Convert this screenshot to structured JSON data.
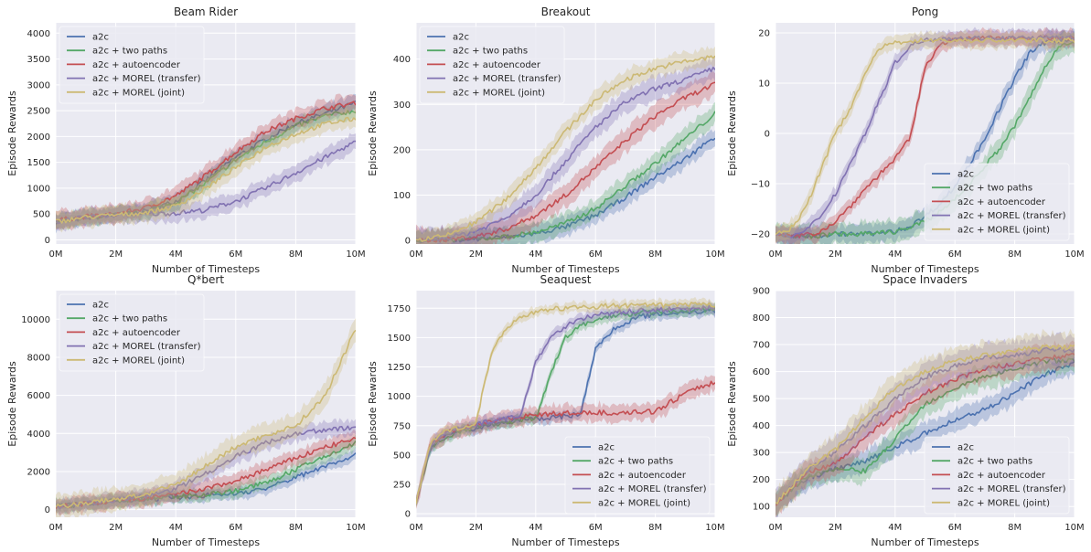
{
  "colors": {
    "a2c": "#4c72b0",
    "a2c + two paths": "#55a868",
    "a2c + autoencoder": "#c44e52",
    "a2c + MOREL (transfer)": "#8172b2",
    "a2c + MOREL (joint)": "#ccb974",
    "axes_bg": "#eaeaf2",
    "grid": "#ffffff"
  },
  "chart_data": [
    {
      "type": "line",
      "title": "Beam Rider",
      "xlabel": "Number of Timesteps",
      "ylabel": "Episode Rewards",
      "xlim": [
        0,
        10
      ],
      "ylim": [
        -80,
        4200
      ],
      "xticks": [
        0,
        2,
        4,
        6,
        8,
        10
      ],
      "xtick_labels": [
        "0M",
        "2M",
        "4M",
        "6M",
        "8M",
        "10M"
      ],
      "yticks": [
        0,
        500,
        1000,
        1500,
        2000,
        2500,
        3000,
        3500,
        4000
      ],
      "ytick_labels": [
        "0",
        "500",
        "1000",
        "1500",
        "2000",
        "2500",
        "3000",
        "3500",
        "4000"
      ],
      "legend_loc": "upper left",
      "grid": true,
      "x": [
        0,
        1,
        2,
        3,
        4,
        5,
        6,
        7,
        8,
        9,
        10
      ],
      "series": [
        {
          "name": "a2c",
          "values": [
            350,
            420,
            480,
            560,
            750,
            1150,
            1600,
            1950,
            2250,
            2450,
            2650
          ],
          "band": 150
        },
        {
          "name": "a2c + two paths",
          "values": [
            350,
            430,
            480,
            550,
            720,
            1100,
            1550,
            1900,
            2200,
            2400,
            2500
          ],
          "band": 150
        },
        {
          "name": "a2c + autoencoder",
          "values": [
            380,
            450,
            500,
            620,
            850,
            1250,
            1700,
            2100,
            2350,
            2550,
            2650
          ],
          "band": 170
        },
        {
          "name": "a2c + MOREL (transfer)",
          "values": [
            360,
            440,
            480,
            500,
            520,
            580,
            750,
            1000,
            1300,
            1600,
            1900
          ],
          "band": 160
        },
        {
          "name": "a2c + MOREL (joint)",
          "values": [
            350,
            440,
            480,
            530,
            650,
            1000,
            1400,
            1800,
            2050,
            2250,
            2350
          ],
          "band": 170
        }
      ]
    },
    {
      "type": "line",
      "title": "Breakout",
      "xlabel": "Number of Timesteps",
      "ylabel": "Episode Rewards",
      "xlim": [
        0,
        10
      ],
      "ylim": [
        -8,
        480
      ],
      "xticks": [
        0,
        2,
        4,
        6,
        8,
        10
      ],
      "xtick_labels": [
        "0M",
        "2M",
        "4M",
        "6M",
        "8M",
        "10M"
      ],
      "yticks": [
        0,
        100,
        200,
        300,
        400
      ],
      "ytick_labels": [
        "0",
        "100",
        "200",
        "300",
        "400"
      ],
      "legend_loc": "upper left",
      "grid": true,
      "x": [
        0,
        1,
        2,
        3,
        4,
        5,
        6,
        7,
        8,
        9,
        10
      ],
      "series": [
        {
          "name": "a2c",
          "values": [
            0,
            1,
            3,
            7,
            15,
            30,
            55,
            95,
            140,
            180,
            230
          ],
          "band": 20
        },
        {
          "name": "a2c + two paths",
          "values": [
            0,
            1,
            3,
            8,
            18,
            38,
            70,
            120,
            170,
            225,
            280
          ],
          "band": 22
        },
        {
          "name": "a2c + autoencoder",
          "values": [
            0,
            2,
            8,
            25,
            55,
            100,
            160,
            220,
            275,
            315,
            345
          ],
          "band": 25
        },
        {
          "name": "a2c + MOREL (transfer)",
          "values": [
            0,
            5,
            20,
            50,
            100,
            175,
            250,
            305,
            335,
            355,
            380
          ],
          "band": 25
        },
        {
          "name": "a2c + MOREL (joint)",
          "values": [
            0,
            10,
            40,
            90,
            160,
            240,
            310,
            355,
            380,
            395,
            405
          ],
          "band": 20
        }
      ]
    },
    {
      "type": "line",
      "title": "Pong",
      "xlabel": "Number of Timesteps",
      "ylabel": "Episode Rewards",
      "xlim": [
        0,
        10
      ],
      "ylim": [
        -22,
        22
      ],
      "xticks": [
        0,
        2,
        4,
        6,
        8,
        10
      ],
      "xtick_labels": [
        "0M",
        "2M",
        "4M",
        "6M",
        "8M",
        "10M"
      ],
      "yticks": [
        -20,
        -10,
        0,
        10,
        20
      ],
      "ytick_labels": [
        "−20",
        "−10",
        "0",
        "10",
        "20"
      ],
      "legend_loc": "lower right",
      "grid": true,
      "x": [
        0,
        0.5,
        1,
        1.5,
        2,
        2.5,
        3,
        3.5,
        4,
        4.5,
        5,
        5.5,
        6,
        6.5,
        7,
        7.5,
        8,
        8.5,
        9,
        9.5,
        10
      ],
      "series": [
        {
          "name": "a2c",
          "values": [
            -20,
            -20.5,
            -20.5,
            -20.3,
            -20,
            -20,
            -20,
            -19.8,
            -19.5,
            -18.5,
            -16.5,
            -14,
            -10.5,
            -6,
            -1,
            5,
            11,
            16,
            18,
            18.5,
            19
          ],
          "band": 1.8
        },
        {
          "name": "a2c + two paths",
          "values": [
            -20,
            -20.5,
            -20.5,
            -20.3,
            -20,
            -20,
            -20,
            -19.8,
            -19.5,
            -18.8,
            -17.5,
            -15.5,
            -13,
            -10,
            -6.5,
            -3,
            1.5,
            7,
            13,
            17.5,
            18.5
          ],
          "band": 2.2
        },
        {
          "name": "a2c + autoencoder",
          "values": [
            -20,
            -20.5,
            -20.3,
            -19.5,
            -17.5,
            -14.5,
            -11,
            -8,
            -5,
            -1,
            13,
            18,
            18.5,
            18.8,
            19,
            19,
            19,
            19,
            19,
            19,
            19
          ],
          "band": 1.5
        },
        {
          "name": "a2c + MOREL (transfer)",
          "values": [
            -20,
            -20.5,
            -19.5,
            -16.5,
            -12,
            -6,
            0,
            7,
            14,
            17.5,
            18.5,
            19,
            19,
            19,
            19,
            19,
            19,
            19,
            19,
            19,
            19
          ],
          "band": 1.5
        },
        {
          "name": "a2c + MOREL (joint)",
          "values": [
            -20,
            -19,
            -15,
            -7.5,
            0,
            5,
            12,
            17,
            18,
            18.5,
            18.5,
            18.5,
            18.5,
            18.5,
            18.5,
            18.5,
            18.5,
            18.5,
            18.5,
            18.5,
            18.5
          ],
          "band": 1.5
        }
      ]
    },
    {
      "type": "line",
      "title": "Q*bert",
      "xlabel": "Number of Timesteps",
      "ylabel": "Episode Rewards",
      "xlim": [
        0,
        10
      ],
      "ylim": [
        -400,
        11500
      ],
      "xticks": [
        0,
        2,
        4,
        6,
        8,
        10
      ],
      "xtick_labels": [
        "0M",
        "2M",
        "4M",
        "6M",
        "8M",
        "10M"
      ],
      "yticks": [
        0,
        2000,
        4000,
        6000,
        8000,
        10000
      ],
      "ytick_labels": [
        "0",
        "2000",
        "4000",
        "6000",
        "8000",
        "10000"
      ],
      "legend_loc": "upper left",
      "grid": true,
      "x": [
        0,
        1,
        2,
        3,
        4,
        5,
        6,
        7,
        8,
        9,
        10
      ],
      "series": [
        {
          "name": "a2c",
          "values": [
            150,
            300,
            450,
            550,
            650,
            750,
            850,
            1100,
            1700,
            2300,
            2900
          ],
          "band": 300
        },
        {
          "name": "a2c + two paths",
          "values": [
            150,
            320,
            470,
            580,
            700,
            800,
            1000,
            1400,
            2100,
            2800,
            3500
          ],
          "band": 350
        },
        {
          "name": "a2c + autoencoder",
          "values": [
            150,
            320,
            470,
            600,
            800,
            1100,
            1500,
            2100,
            2700,
            3300,
            3700
          ],
          "band": 400
        },
        {
          "name": "a2c + MOREL (transfer)",
          "values": [
            150,
            330,
            500,
            700,
            1100,
            1900,
            2800,
            3500,
            4000,
            4200,
            4300
          ],
          "band": 400
        },
        {
          "name": "a2c + MOREL (joint)",
          "values": [
            150,
            350,
            550,
            800,
            1300,
            2300,
            3300,
            3900,
            4400,
            6000,
            9500
          ],
          "band": 600
        }
      ]
    },
    {
      "type": "line",
      "title": "Seaquest",
      "xlabel": "Number of Timesteps",
      "ylabel": "Episode Rewards",
      "xlim": [
        0,
        10
      ],
      "ylim": [
        -30,
        1900
      ],
      "xticks": [
        0,
        2,
        4,
        6,
        8,
        10
      ],
      "xtick_labels": [
        "0M",
        "2M",
        "4M",
        "6M",
        "8M",
        "10M"
      ],
      "yticks": [
        0,
        250,
        500,
        750,
        1000,
        1250,
        1500,
        1750
      ],
      "ytick_labels": [
        "0",
        "250",
        "500",
        "750",
        "1000",
        "1250",
        "1500",
        "1750"
      ],
      "legend_loc": "lower right",
      "grid": true,
      "x": [
        0,
        0.25,
        0.5,
        1,
        1.5,
        2,
        2.5,
        3,
        3.5,
        4,
        4.5,
        5,
        5.5,
        6,
        6.5,
        7,
        7.5,
        8,
        8.5,
        9,
        9.5,
        10
      ],
      "series": [
        {
          "name": "a2c",
          "values": [
            100,
            350,
            580,
            670,
            710,
            730,
            760,
            780,
            800,
            810,
            820,
            830,
            850,
            1400,
            1550,
            1630,
            1680,
            1700,
            1710,
            1720,
            1725,
            1730
          ],
          "band": 45
        },
        {
          "name": "a2c + two paths",
          "values": [
            100,
            340,
            570,
            660,
            700,
            730,
            760,
            780,
            800,
            810,
            1200,
            1500,
            1600,
            1650,
            1680,
            1700,
            1710,
            1720,
            1725,
            1730,
            1735,
            1740
          ],
          "band": 45
        },
        {
          "name": "a2c + autoencoder",
          "values": [
            100,
            360,
            600,
            690,
            730,
            760,
            790,
            810,
            830,
            840,
            850,
            855,
            860,
            860,
            860,
            865,
            865,
            870,
            950,
            1020,
            1080,
            1120
          ],
          "band": 70
        },
        {
          "name": "a2c + MOREL (transfer)",
          "values": [
            100,
            360,
            600,
            690,
            730,
            760,
            790,
            810,
            830,
            1300,
            1500,
            1600,
            1660,
            1690,
            1710,
            1720,
            1730,
            1735,
            1740,
            1745,
            1750,
            1750
          ],
          "band": 45
        },
        {
          "name": "a2c + MOREL (joint)",
          "values": [
            100,
            370,
            620,
            700,
            740,
            770,
            1350,
            1580,
            1680,
            1720,
            1740,
            1750,
            1760,
            1765,
            1770,
            1770,
            1775,
            1775,
            1775,
            1778,
            1780,
            1780
          ],
          "band": 40
        }
      ]
    },
    {
      "type": "line",
      "title": "Space Invaders",
      "xlabel": "Number of Timesteps",
      "ylabel": "Episode Rewards",
      "xlim": [
        0,
        10
      ],
      "ylim": [
        60,
        900
      ],
      "xticks": [
        0,
        2,
        4,
        6,
        8,
        10
      ],
      "xtick_labels": [
        "0M",
        "2M",
        "4M",
        "6M",
        "8M",
        "10M"
      ],
      "yticks": [
        100,
        200,
        300,
        400,
        500,
        600,
        700,
        800,
        900
      ],
      "ytick_labels": [
        "100",
        "200",
        "300",
        "400",
        "500",
        "600",
        "700",
        "800",
        "900"
      ],
      "legend_loc": "lower right",
      "grid": true,
      "x": [
        0,
        1,
        2,
        3,
        4,
        5,
        6,
        7,
        8,
        9,
        10
      ],
      "series": [
        {
          "name": "a2c",
          "values": [
            110,
            200,
            240,
            270,
            320,
            370,
            420,
            460,
            520,
            590,
            630
          ],
          "band": 40
        },
        {
          "name": "a2c + two paths",
          "values": [
            110,
            210,
            240,
            230,
            350,
            480,
            540,
            580,
            610,
            640,
            640
          ],
          "band": 45
        },
        {
          "name": "a2c + autoencoder",
          "values": [
            110,
            220,
            260,
            360,
            440,
            520,
            570,
            610,
            630,
            650,
            660
          ],
          "band": 45
        },
        {
          "name": "a2c + MOREL (transfer)",
          "values": [
            110,
            230,
            300,
            400,
            500,
            580,
            620,
            650,
            660,
            680,
            680
          ],
          "band": 50
        },
        {
          "name": "a2c + MOREL (joint)",
          "values": [
            110,
            230,
            310,
            430,
            540,
            600,
            640,
            660,
            680,
            690,
            690
          ],
          "band": 50
        }
      ]
    }
  ]
}
